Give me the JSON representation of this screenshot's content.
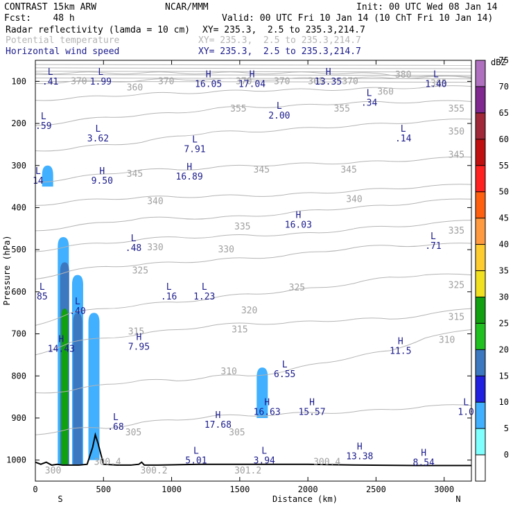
{
  "header": {
    "model": "CONTRAST 15km ARW",
    "center": "NCAR/MMM",
    "init": "Init: 00 UTC Wed 08 Jan 14",
    "forecast": "Fcst:    48 h",
    "valid": "Valid: 00 UTC Fri 10 Jan 14 (10 ChT Fri 10 Jan 14)",
    "fields": [
      {
        "name": "Radar reflectivity (lamda = 10 cm)",
        "xy": "XY= 235.3,  2.5 to 235.3,214.7",
        "style": "black"
      },
      {
        "name": "Potential temperature",
        "xy": "XY= 235.3,  2.5 to 235.3,214.7",
        "style": "grey"
      },
      {
        "name": "Horizontal wind speed",
        "xy": "XY= 235.3,  2.5 to 235.3,214.7",
        "style": "blue"
      }
    ]
  },
  "colors": {
    "theta_contour": "#b4b4b4",
    "wind_label": "#1a1a8c",
    "terrain": "#000000"
  },
  "chart_data": {
    "type": "cross-section",
    "xlabel": "Distance (km)",
    "ylabel": "Pressure (hPa)",
    "xlim": [
      0,
      3200
    ],
    "ylim": [
      1050,
      50
    ],
    "x_ticks": [
      0,
      500,
      1000,
      1500,
      2000,
      2500,
      3000
    ],
    "y_ticks": [
      100,
      200,
      300,
      400,
      500,
      600,
      700,
      800,
      900,
      1000
    ],
    "endpoints": {
      "left": "S",
      "right": "N"
    },
    "colorbar": {
      "unit": "dBZ",
      "levels": [
        0,
        5,
        10,
        15,
        20,
        25,
        30,
        35,
        40,
        45,
        50,
        55,
        60,
        65,
        70,
        75
      ],
      "colors": [
        "#ffffff",
        "#80ffff",
        "#40b0ff",
        "#2020e0",
        "#3c78c0",
        "#20c020",
        "#10a010",
        "#f0e020",
        "#ffcc30",
        "#ff9a40",
        "#ff6010",
        "#ff2020",
        "#c01010",
        "#a02838",
        "#802890",
        "#b070c0"
      ]
    },
    "reflectivity_cells": [
      {
        "x": 90,
        "p_top": 300,
        "p_bottom": 350,
        "dbz": 5
      },
      {
        "x": 205,
        "p_top": 470,
        "p_bottom": 1010,
        "dbz": 5
      },
      {
        "x": 215,
        "p_top": 530,
        "p_bottom": 1010,
        "dbz": 15
      },
      {
        "x": 215,
        "p_top": 640,
        "p_bottom": 1010,
        "dbz": 25
      },
      {
        "x": 310,
        "p_top": 560,
        "p_bottom": 1010,
        "dbz": 5
      },
      {
        "x": 310,
        "p_top": 650,
        "p_bottom": 1010,
        "dbz": 15
      },
      {
        "x": 430,
        "p_top": 650,
        "p_bottom": 1000,
        "dbz": 5
      },
      {
        "x": 1665,
        "p_top": 780,
        "p_bottom": 900,
        "dbz": 5
      }
    ],
    "theta_contours": {
      "interval": 5,
      "levels": [
        {
          "theta": 305,
          "p": [
            940,
            925,
            925,
            910,
            905,
            895,
            895,
            890,
            888,
            885,
            880,
            872,
            870
          ]
        },
        {
          "theta": 310,
          "p": [
            840,
            835,
            820,
            810,
            812,
            800,
            800,
            790,
            770,
            755,
            740,
            710,
            690
          ]
        },
        {
          "theta": 315,
          "p": [
            750,
            720,
            710,
            700,
            690,
            680,
            675,
            675,
            670,
            665,
            665,
            655,
            640
          ]
        },
        {
          "theta": 320,
          "p": [
            680,
            650,
            640,
            630,
            625,
            615,
            605,
            600,
            590,
            580,
            565,
            560,
            560
          ]
        },
        {
          "theta": 325,
          "p": [
            570,
            550,
            540,
            535,
            530,
            525,
            520,
            515,
            505,
            495,
            490,
            490,
            485
          ]
        },
        {
          "theta": 330,
          "p": [
            505,
            490,
            485,
            475,
            470,
            470,
            465,
            465,
            460,
            450,
            445,
            440,
            430
          ]
        },
        {
          "theta": 335,
          "p": [
            455,
            445,
            435,
            425,
            425,
            425,
            420,
            415,
            405,
            400,
            395,
            385,
            380
          ]
        },
        {
          "theta": 340,
          "p": [
            395,
            385,
            380,
            375,
            375,
            372,
            372,
            370,
            365,
            360,
            355,
            350,
            345
          ]
        },
        {
          "theta": 345,
          "p": [
            340,
            330,
            320,
            310,
            310,
            305,
            300,
            298,
            295,
            293,
            290,
            285,
            280
          ]
        },
        {
          "theta": 350,
          "p": [
            265,
            260,
            250,
            245,
            230,
            220,
            220,
            215,
            210,
            205,
            200,
            195,
            190
          ]
        },
        {
          "theta": 355,
          "p": [
            205,
            195,
            185,
            180,
            175,
            165,
            160,
            160,
            155,
            150,
            150,
            148,
            148
          ]
        },
        {
          "theta": 360,
          "p": [
            145,
            140,
            135,
            130,
            128,
            125,
            122,
            120,
            120,
            118,
            116,
            114,
            112
          ]
        },
        {
          "theta": 370,
          "p": [
            105,
            100,
            100,
            98,
            95,
            95,
            95,
            95,
            93,
            92,
            92,
            90,
            90
          ]
        },
        {
          "theta": 380,
          "p": [
            80,
            80,
            80,
            80,
            80,
            80,
            80,
            80,
            80,
            80,
            85,
            88,
            92
          ]
        }
      ],
      "x": [
        0,
        260,
        520,
        780,
        1040,
        1300,
        1560,
        1820,
        2080,
        2340,
        2600,
        2860,
        3200
      ]
    },
    "theta_labels": [
      {
        "text": "370",
        "x": 320,
        "p": 100
      },
      {
        "text": "360",
        "x": 730,
        "p": 115
      },
      {
        "text": "370",
        "x": 960,
        "p": 100
      },
      {
        "text": "370",
        "x": 1530,
        "p": 100
      },
      {
        "text": "370",
        "x": 1810,
        "p": 100
      },
      {
        "text": "365",
        "x": 2060,
        "p": 100
      },
      {
        "text": "370",
        "x": 2310,
        "p": 100
      },
      {
        "text": "380",
        "x": 2700,
        "p": 85
      },
      {
        "text": "365",
        "x": 2960,
        "p": 105
      },
      {
        "text": "360",
        "x": 2570,
        "p": 125
      },
      {
        "text": "355",
        "x": 1490,
        "p": 165
      },
      {
        "text": "355",
        "x": 2250,
        "p": 165
      },
      {
        "text": "355",
        "x": 3090,
        "p": 165
      },
      {
        "text": "350",
        "x": 3090,
        "p": 220
      },
      {
        "text": "345",
        "x": 3090,
        "p": 275
      },
      {
        "text": "345",
        "x": 730,
        "p": 320
      },
      {
        "text": "345",
        "x": 1660,
        "p": 310
      },
      {
        "text": "345",
        "x": 2300,
        "p": 310
      },
      {
        "text": "340",
        "x": 880,
        "p": 385
      },
      {
        "text": "340",
        "x": 2340,
        "p": 380
      },
      {
        "text": "335",
        "x": 1520,
        "p": 445
      },
      {
        "text": "335",
        "x": 3090,
        "p": 455
      },
      {
        "text": "330",
        "x": 880,
        "p": 495
      },
      {
        "text": "330",
        "x": 1400,
        "p": 500
      },
      {
        "text": "325",
        "x": 770,
        "p": 550
      },
      {
        "text": "325",
        "x": 1920,
        "p": 590
      },
      {
        "text": "325",
        "x": 3090,
        "p": 585
      },
      {
        "text": "320",
        "x": 1570,
        "p": 645
      },
      {
        "text": "315",
        "x": 740,
        "p": 695
      },
      {
        "text": "315",
        "x": 1500,
        "p": 690
      },
      {
        "text": "315",
        "x": 3090,
        "p": 660
      },
      {
        "text": "310",
        "x": 1420,
        "p": 790
      },
      {
        "text": "310",
        "x": 3020,
        "p": 715
      },
      {
        "text": "305",
        "x": 720,
        "p": 935
      },
      {
        "text": "305",
        "x": 1480,
        "p": 935
      },
      {
        "text": "300.4",
        "x": 530,
        "p": 1005
      },
      {
        "text": "300.2",
        "x": 870,
        "p": 1025
      },
      {
        "text": "301.2",
        "x": 1560,
        "p": 1025
      },
      {
        "text": "300.4",
        "x": 2140,
        "p": 1005
      },
      {
        "text": "300",
        "x": 130,
        "p": 1025
      }
    ],
    "wind_extrema": [
      {
        "type": "L",
        "value": ".41",
        "x": 110,
        "p": 85
      },
      {
        "type": "L",
        "value": "1.99",
        "x": 480,
        "p": 85
      },
      {
        "type": "H",
        "value": "16.05",
        "x": 1270,
        "p": 90
      },
      {
        "type": "H",
        "value": "17.04",
        "x": 1590,
        "p": 90
      },
      {
        "type": "H",
        "value": "13.35",
        "x": 2150,
        "p": 85
      },
      {
        "type": "L",
        "value": "1.40",
        "x": 2940,
        "p": 90
      },
      {
        "type": "L",
        "value": ".34",
        "x": 2450,
        "p": 135
      },
      {
        "type": "L",
        "value": "2.00",
        "x": 1790,
        "p": 165
      },
      {
        "type": "L",
        "value": ".59",
        "x": 60,
        "p": 190
      },
      {
        "type": "L",
        "value": "3.62",
        "x": 460,
        "p": 220
      },
      {
        "type": "L",
        "value": ".14",
        "x": 2700,
        "p": 220
      },
      {
        "type": "L",
        "value": "7.91",
        "x": 1170,
        "p": 245
      },
      {
        "type": "H",
        "value": "16.89",
        "x": 1130,
        "p": 310
      },
      {
        "type": "H",
        "value": "9.50",
        "x": 490,
        "p": 320
      },
      {
        "type": "L",
        "value": "14",
        "x": 20,
        "p": 320
      },
      {
        "type": "H",
        "value": "16.03",
        "x": 1930,
        "p": 425
      },
      {
        "type": "L",
        "value": ".48",
        "x": 720,
        "p": 480
      },
      {
        "type": "L",
        "value": ".71",
        "x": 2920,
        "p": 475
      },
      {
        "type": "L",
        "value": "85",
        "x": 50,
        "p": 595
      },
      {
        "type": "L",
        "value": ".16",
        "x": 980,
        "p": 595
      },
      {
        "type": "L",
        "value": "1.23",
        "x": 1240,
        "p": 595
      },
      {
        "type": "L",
        "value": ".40",
        "x": 310,
        "p": 630
      },
      {
        "type": "H",
        "value": "14.43",
        "x": 190,
        "p": 720
      },
      {
        "type": "H",
        "value": "7.95",
        "x": 760,
        "p": 715
      },
      {
        "type": "H",
        "value": "11.5",
        "x": 2680,
        "p": 725
      },
      {
        "type": "L",
        "value": "6.55",
        "x": 1830,
        "p": 780
      },
      {
        "type": "H",
        "value": "16.63",
        "x": 1700,
        "p": 870
      },
      {
        "type": "H",
        "value": "15.57",
        "x": 2030,
        "p": 870
      },
      {
        "type": "L",
        "value": "1.0",
        "x": 3160,
        "p": 870
      },
      {
        "type": "L",
        "value": ".68",
        "x": 590,
        "p": 905
      },
      {
        "type": "H",
        "value": "17.68",
        "x": 1340,
        "p": 900
      },
      {
        "type": "L",
        "value": "5.01",
        "x": 1180,
        "p": 985
      },
      {
        "type": "L",
        "value": "3.94",
        "x": 1680,
        "p": 985
      },
      {
        "type": "H",
        "value": "13.38",
        "x": 2380,
        "p": 975
      },
      {
        "type": "H",
        "value": "8.54",
        "x": 2850,
        "p": 990
      }
    ],
    "terrain": {
      "x": [
        0,
        40,
        80,
        120,
        160,
        200,
        260,
        320,
        380,
        420,
        440,
        460,
        500,
        600,
        700,
        760,
        780,
        800,
        900,
        1200,
        1600,
        2000,
        2400,
        2800,
        3200
      ],
      "p": [
        1005,
        1010,
        1005,
        1012,
        1010,
        1012,
        1012,
        1012,
        1010,
        970,
        940,
        960,
        1010,
        1012,
        1012,
        1010,
        1005,
        1012,
        1012,
        1010,
        1010,
        1010,
        1012,
        1013,
        1013
      ]
    }
  }
}
